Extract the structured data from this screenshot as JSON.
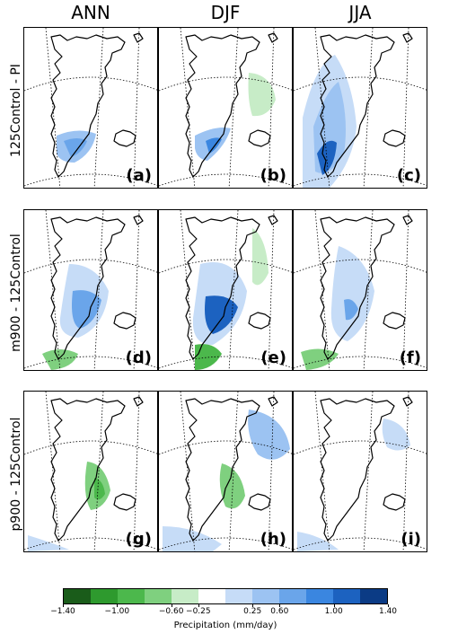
{
  "columns": [
    "ANN",
    "DJF",
    "JJA"
  ],
  "rows": [
    "125Control - PI",
    "m900 - 125Control",
    "p900 - 125Control"
  ],
  "panels": [
    {
      "label": "(a)",
      "row": 0,
      "col": 0
    },
    {
      "label": "(b)",
      "row": 0,
      "col": 1
    },
    {
      "label": "(c)",
      "row": 0,
      "col": 2
    },
    {
      "label": "(d)",
      "row": 1,
      "col": 0
    },
    {
      "label": "(e)",
      "row": 1,
      "col": 1
    },
    {
      "label": "(f)",
      "row": 1,
      "col": 2
    },
    {
      "label": "(g)",
      "row": 2,
      "col": 0
    },
    {
      "label": "(h)",
      "row": 2,
      "col": 1
    },
    {
      "label": "(i)",
      "row": 2,
      "col": 2
    }
  ],
  "colorbar": {
    "label": "Precipitation (mm/day)",
    "ticks": [
      "−1.40",
      "−1.00",
      "−0.60",
      "−0.25",
      "0.25",
      "0.60",
      "1.00",
      "1.40"
    ],
    "colors": [
      "#1a5c1a",
      "#2e9a2e",
      "#4cb84c",
      "#7fd07f",
      "#c7ecc7",
      "#ffffff",
      "#c6dcf7",
      "#9cc3f2",
      "#6aa5ea",
      "#3a86e0",
      "#1c62c0",
      "#0b3b85"
    ]
  }
}
